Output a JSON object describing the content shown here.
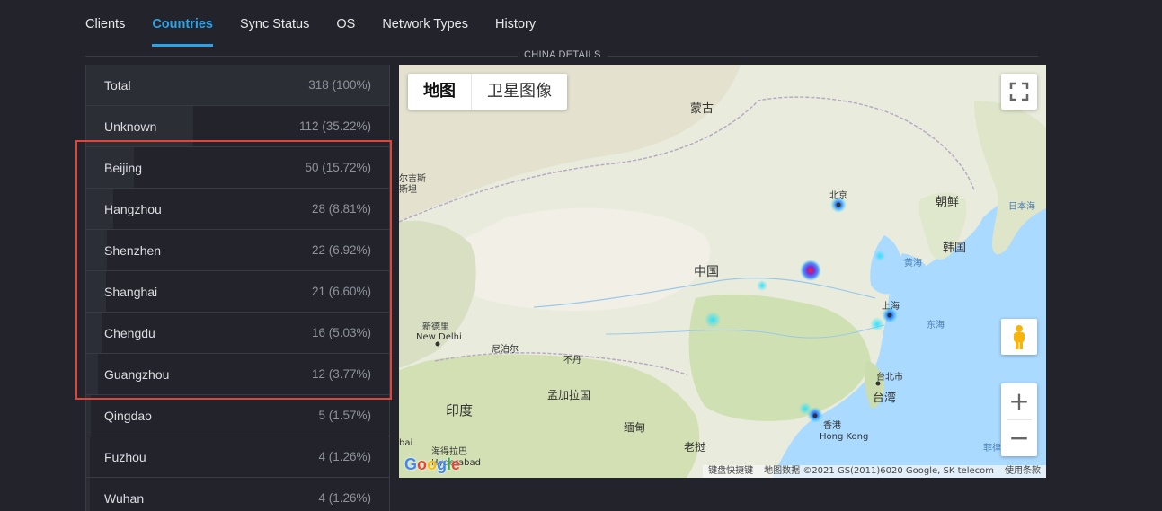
{
  "tabs": [
    {
      "label": "Clients"
    },
    {
      "label": "Countries"
    },
    {
      "label": "Sync Status"
    },
    {
      "label": "OS"
    },
    {
      "label": "Network Types"
    },
    {
      "label": "History"
    }
  ],
  "section_title": "CHINA DETAILS",
  "cities": [
    {
      "name": "Total",
      "value": "318 (100%)",
      "share": 1.0
    },
    {
      "name": "Unknown",
      "value": "112 (35.22%)",
      "share": 0.3522
    },
    {
      "name": "Beijing",
      "value": "50 (15.72%)",
      "share": 0.1572
    },
    {
      "name": "Hangzhou",
      "value": "28 (8.81%)",
      "share": 0.0881
    },
    {
      "name": "Shenzhen",
      "value": "22 (6.92%)",
      "share": 0.0692
    },
    {
      "name": "Shanghai",
      "value": "21 (6.60%)",
      "share": 0.066
    },
    {
      "name": "Chengdu",
      "value": "16 (5.03%)",
      "share": 0.0503
    },
    {
      "name": "Guangzhou",
      "value": "12 (3.77%)",
      "share": 0.0377
    },
    {
      "name": "Qingdao",
      "value": "5 (1.57%)",
      "share": 0.0157
    },
    {
      "name": "Fuzhou",
      "value": "4 (1.26%)",
      "share": 0.0126
    },
    {
      "name": "Wuhan",
      "value": "4 (1.26%)",
      "share": 0.0126
    }
  ],
  "map": {
    "type_map": "地图",
    "type_satellite": "卫星图像",
    "labels": {
      "mongolia": "蒙古",
      "beijing": "北京",
      "korea_north": "朝鲜",
      "korea_south": "韩国",
      "japan_sea": "日本海",
      "yellow_sea": "黄海",
      "east_sea": "东海",
      "china": "中国",
      "shanghai": "上海",
      "new_delhi_cn": "新德里",
      "new_delhi": "New Delhi",
      "nepal": "尼泊尔",
      "bhutan": "不丹",
      "bangladesh": "孟加拉国",
      "india": "印度",
      "myanmar": "缅甸",
      "laos": "老挝",
      "taipei": "台北市",
      "taiwan": "台湾",
      "hongkong_cn": "香港",
      "hongkong": "Hong Kong",
      "hyderabad_cn": "海得拉巴",
      "hyderabad": "Hyderabad",
      "kashgar_1": "尔吉斯",
      "kashgar_2": "斯坦",
      "philippines": "菲律",
      "bai": "bai"
    },
    "google": "Google",
    "attribution": {
      "shortcuts": "键盘快捷键",
      "data": "地图数据 ©2021 GS(2011)6020 Google, SK telecom",
      "terms": "使用条款"
    },
    "zoom_in": "+",
    "zoom_out": "−"
  }
}
